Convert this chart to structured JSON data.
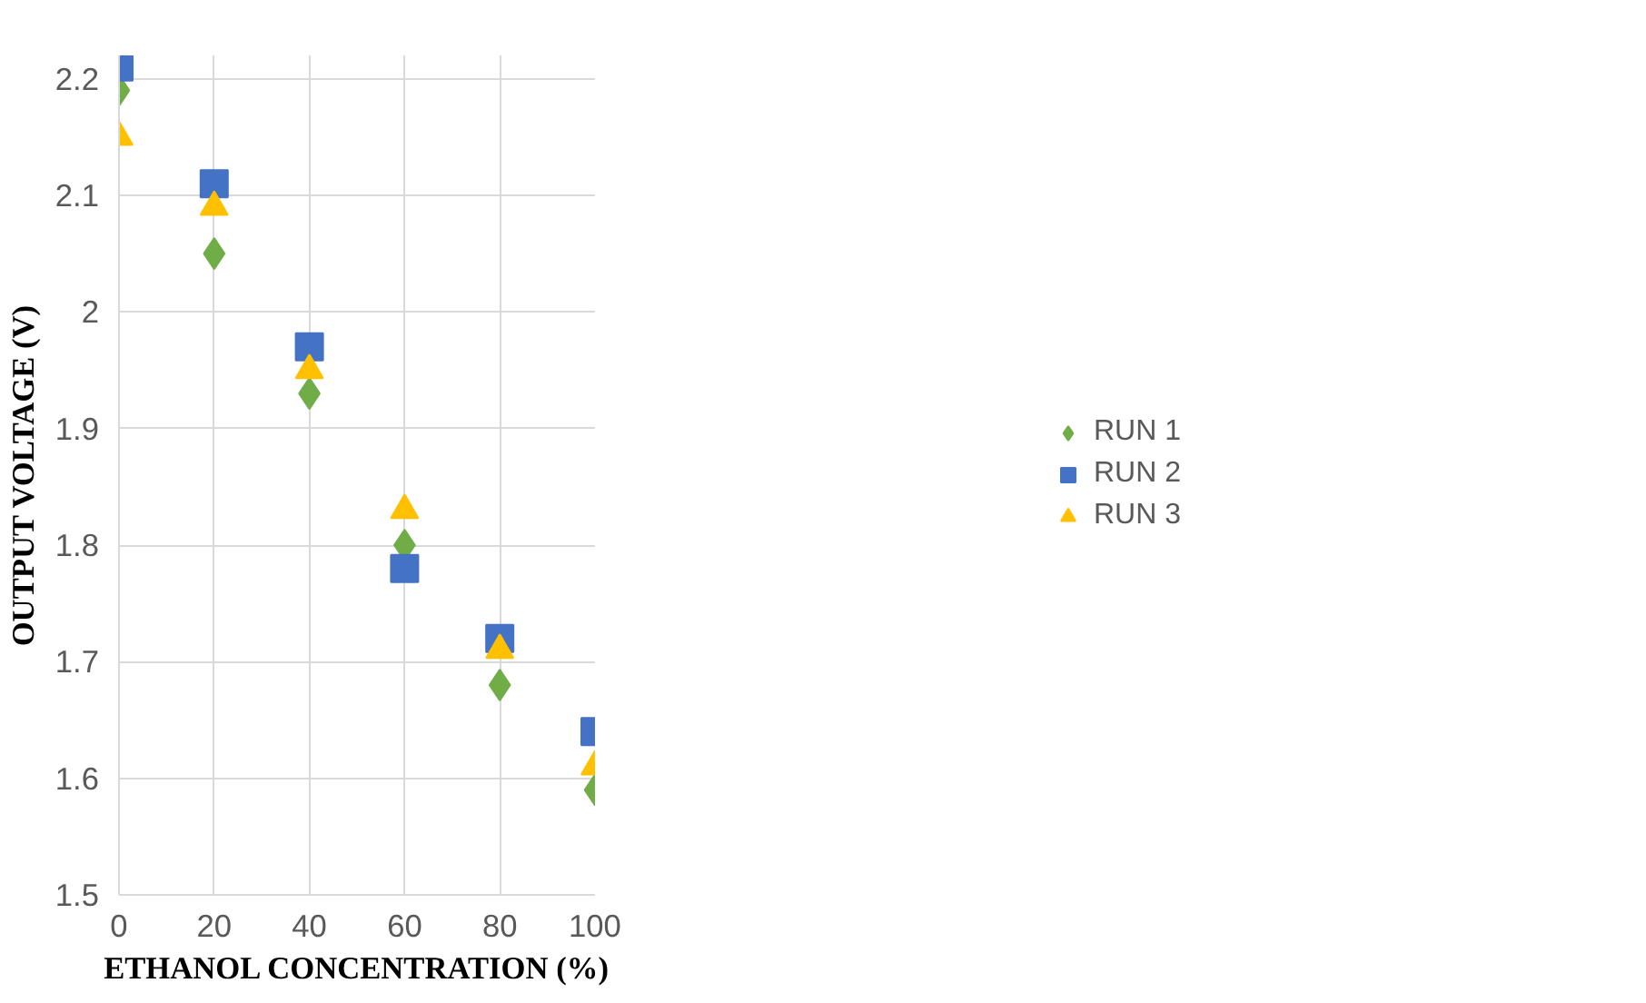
{
  "chart_data": {
    "type": "scatter",
    "xlabel": "ETHANOL CONCENTRATION (%)",
    "ylabel": "OUTPUT VOLTAGE (V)",
    "x": [
      0,
      20,
      40,
      60,
      80,
      100
    ],
    "series": [
      {
        "name": "RUN 1",
        "color": "#70ad47",
        "marker": "diamond",
        "values": [
          2.19,
          2.05,
          1.93,
          1.8,
          1.68,
          1.59
        ]
      },
      {
        "name": "RUN 2",
        "color": "#4472c4",
        "marker": "square",
        "values": [
          2.21,
          2.11,
          1.97,
          1.78,
          1.72,
          1.64
        ]
      },
      {
        "name": "RUN 3",
        "color": "#ffc000",
        "marker": "triangle",
        "values": [
          2.15,
          2.09,
          1.95,
          1.83,
          1.71,
          1.61
        ]
      }
    ],
    "xlim": [
      0,
      100
    ],
    "xticks": [
      0,
      20,
      40,
      60,
      80,
      100
    ],
    "ylim": [
      1.5,
      2.22
    ],
    "yticks": [
      1.5,
      1.6,
      1.7,
      1.8,
      1.9,
      2,
      2.1,
      2.2
    ],
    "grid": true,
    "legend": "right"
  }
}
